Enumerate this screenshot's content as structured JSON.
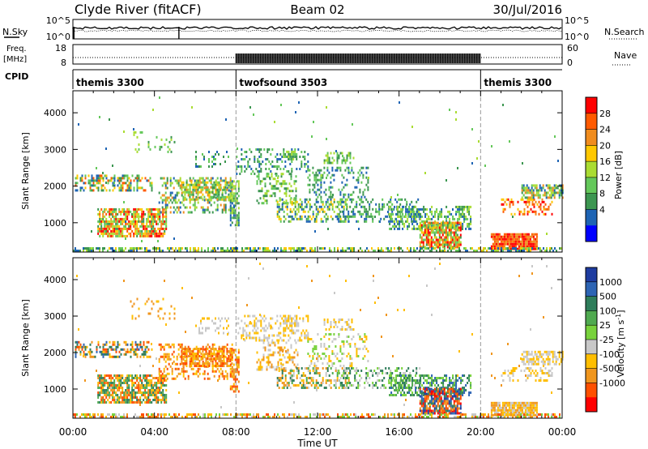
{
  "header": {
    "station": "Clyde River (fitACF)",
    "beam": "Beam 02",
    "date": "30/Jul/2016"
  },
  "top_panels": {
    "nsky_label": "N.Sky",
    "nsearch_label": "N.Search",
    "nsky_ticks": [
      "10^5",
      "10^0"
    ],
    "nsearch_ticks": [
      "10^5",
      "10^0"
    ],
    "freq_label_line1": "Freq.",
    "freq_label_line2": "[MHz]",
    "freq_ticks": [
      "18",
      "8"
    ],
    "nave_label": "Nave",
    "nave_ticks": [
      "60",
      "0"
    ],
    "cpid_label": "CPID"
  },
  "cpid_segments": [
    {
      "name": "themis 3300",
      "start": 0,
      "end": 8
    },
    {
      "name": "twofsound 3503",
      "start": 8,
      "end": 20
    },
    {
      "name": "themis 3300",
      "start": 20,
      "end": 24
    }
  ],
  "chart_data": [
    {
      "type": "heatmap",
      "title": "Power",
      "ylabel": "Slant Range [km]",
      "xlabel": "Time UT",
      "colorbar_label": "Power [dB]",
      "colorbar_ticks": [
        "28",
        "24",
        "20",
        "16",
        "12",
        "8",
        "4"
      ],
      "colorbar_colors": [
        "#ff0000",
        "#ff5a00",
        "#f08c1e",
        "#ffc800",
        "#aadc32",
        "#64c85a",
        "#3c9650",
        "#1e64b4",
        "#0000ff"
      ],
      "x": [
        "00:00",
        "04:00",
        "08:00",
        "12:00",
        "16:00",
        "20:00",
        "00:00"
      ],
      "y_ticks": [
        1000,
        2000,
        3000,
        4000
      ],
      "ylim": [
        200,
        4600
      ],
      "xlim_hours": [
        0,
        24
      ]
    },
    {
      "type": "heatmap",
      "title": "Velocity",
      "ylabel": "Slant Range [km]",
      "xlabel": "Time UT",
      "colorbar_label": "Velocity [m s^-1]",
      "colorbar_ticks": [
        "1000",
        "500",
        "100",
        "25",
        "-25",
        "-100",
        "-500",
        "-1000"
      ],
      "colorbar_colors": [
        "#1e3ca0",
        "#2d64b4",
        "#2e7d5a",
        "#50aa50",
        "#78d23c",
        "#c8c8c8",
        "#ffbe00",
        "#f0961e",
        "#ff5000",
        "#ff0000"
      ],
      "x": [
        "00:00",
        "04:00",
        "08:00",
        "12:00",
        "16:00",
        "20:00",
        "00:00"
      ],
      "y_ticks": [
        1000,
        2000,
        3000,
        4000
      ],
      "ylim": [
        200,
        4600
      ],
      "xlim_hours": [
        0,
        24
      ]
    }
  ],
  "scatter_regions": [
    {
      "h0": 0.1,
      "h1": 3.9,
      "r0": 1850,
      "r1": 2250,
      "density": 0.45,
      "pc": [
        1,
        3,
        5,
        6,
        7
      ],
      "vc": [
        1,
        2,
        6,
        7,
        8
      ]
    },
    {
      "h0": 1.2,
      "h1": 4.6,
      "r0": 600,
      "r1": 1350,
      "density": 0.75,
      "pc": [
        0,
        1,
        2,
        3,
        4,
        5,
        6
      ],
      "vc": [
        2,
        3,
        6,
        7,
        8
      ]
    },
    {
      "h0": 2.8,
      "h1": 5.0,
      "r0": 2900,
      "r1": 3450,
      "density": 0.12,
      "pc": [
        4,
        5,
        6
      ],
      "vc": [
        6,
        7
      ]
    },
    {
      "h0": 4.2,
      "h1": 7.8,
      "r0": 1250,
      "r1": 2200,
      "density": 0.35,
      "pc": [
        2,
        4,
        5,
        6,
        7
      ],
      "vc": [
        6,
        7,
        8
      ]
    },
    {
      "h0": 5.3,
      "h1": 7.8,
      "r0": 1600,
      "r1": 2100,
      "density": 0.65,
      "pc": [
        2,
        3,
        4,
        5,
        6
      ],
      "vc": [
        6,
        7,
        8
      ]
    },
    {
      "h0": 6.0,
      "h1": 7.6,
      "r0": 2500,
      "r1": 2900,
      "density": 0.2,
      "pc": [
        5,
        6,
        7
      ],
      "vc": [
        5,
        6
      ]
    },
    {
      "h0": 7.7,
      "h1": 8.1,
      "r0": 900,
      "r1": 2100,
      "density": 0.6,
      "pc": [
        4,
        5,
        6,
        7
      ],
      "vc": [
        6,
        7,
        8
      ]
    },
    {
      "h0": 8.0,
      "h1": 11.5,
      "r0": 2300,
      "r1": 3000,
      "density": 0.3,
      "pc": [
        5,
        6,
        7
      ],
      "vc": [
        5,
        6
      ]
    },
    {
      "h0": 9.0,
      "h1": 11.0,
      "r0": 1500,
      "r1": 2300,
      "density": 0.35,
      "pc": [
        4,
        5,
        6
      ],
      "vc": [
        5,
        6,
        7
      ]
    },
    {
      "h0": 10.0,
      "h1": 13.5,
      "r0": 1000,
      "r1": 1600,
      "density": 0.45,
      "pc": [
        3,
        4,
        5,
        6,
        7
      ],
      "vc": [
        2,
        3,
        5,
        6,
        7
      ]
    },
    {
      "h0": 10.3,
      "h1": 11.0,
      "r0": 2700,
      "r1": 2950,
      "density": 0.55,
      "pc": [
        4,
        5,
        6
      ],
      "vc": [
        5,
        6
      ]
    },
    {
      "h0": 11.5,
      "h1": 14.5,
      "r0": 1600,
      "r1": 2500,
      "density": 0.25,
      "pc": [
        5,
        6,
        7
      ],
      "vc": [
        4,
        5,
        6
      ]
    },
    {
      "h0": 12.3,
      "h1": 13.8,
      "r0": 2600,
      "r1": 2900,
      "density": 0.45,
      "pc": [
        4,
        5,
        6
      ],
      "vc": [
        5,
        6
      ]
    },
    {
      "h0": 13.0,
      "h1": 17.0,
      "r0": 1000,
      "r1": 1600,
      "density": 0.35,
      "pc": [
        5,
        6,
        7
      ],
      "vc": [
        2,
        4,
        5
      ]
    },
    {
      "h0": 15.5,
      "h1": 19.5,
      "r0": 800,
      "r1": 1400,
      "density": 0.5,
      "pc": [
        4,
        5,
        6,
        7
      ],
      "vc": [
        1,
        2,
        3,
        4
      ]
    },
    {
      "h0": 17.0,
      "h1": 19.0,
      "r0": 300,
      "r1": 1000,
      "density": 0.85,
      "pc": [
        0,
        1,
        2,
        3,
        4,
        5,
        6
      ],
      "vc": [
        0,
        1,
        2,
        7,
        8,
        9
      ]
    },
    {
      "h0": 20.5,
      "h1": 22.8,
      "r0": 250,
      "r1": 650,
      "density": 0.95,
      "pc": [
        0,
        1,
        2
      ],
      "vc": [
        5,
        6,
        7
      ]
    },
    {
      "h0": 21.0,
      "h1": 23.5,
      "r0": 1200,
      "r1": 1600,
      "density": 0.3,
      "pc": [
        0,
        1,
        2,
        3
      ],
      "vc": [
        5,
        6
      ]
    },
    {
      "h0": 22.0,
      "h1": 24.0,
      "r0": 1650,
      "r1": 2000,
      "density": 0.7,
      "pc": [
        2,
        4,
        5,
        6,
        7
      ],
      "vc": [
        5,
        6
      ]
    },
    {
      "h0": 0.0,
      "h1": 24.0,
      "r0": 200,
      "r1": 330,
      "density": 0.55,
      "pc": [
        3,
        4,
        5,
        6,
        7
      ],
      "vc": [
        4,
        5,
        6,
        7,
        8
      ]
    },
    {
      "h0": 0.0,
      "h1": 24.0,
      "r0": 400,
      "r1": 4400,
      "density": 0.006,
      "pc": [
        4,
        5,
        6,
        7
      ],
      "vc": [
        5,
        6,
        7
      ]
    }
  ]
}
